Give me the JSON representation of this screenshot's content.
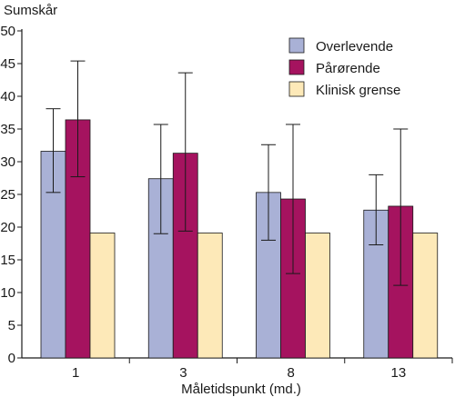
{
  "chart_data": {
    "type": "bar",
    "title": "",
    "ylabel": "Sumskår",
    "xlabel": "Måletidspunkt (md.)",
    "ylim": [
      0,
      50
    ],
    "yticks": [
      0,
      5,
      10,
      15,
      20,
      25,
      30,
      35,
      40,
      45,
      50
    ],
    "categories": [
      "1",
      "3",
      "8",
      "13"
    ],
    "series": [
      {
        "name": "Overlevende",
        "color": "#a9b1d6",
        "values": [
          31.6,
          27.4,
          25.3,
          22.6
        ],
        "error_low": [
          25.3,
          19.0,
          18.0,
          17.3
        ],
        "error_high": [
          38.1,
          35.7,
          32.6,
          28.0
        ]
      },
      {
        "name": "Pårørende",
        "color": "#a5135f",
        "values": [
          36.4,
          31.3,
          24.3,
          23.2
        ],
        "error_low": [
          27.7,
          19.4,
          12.9,
          11.1
        ],
        "error_high": [
          45.4,
          43.6,
          35.7,
          35.0
        ]
      },
      {
        "name": "Klinisk grense",
        "color": "#fde9b8",
        "values": [
          19.1,
          19.1,
          19.1,
          19.1
        ]
      }
    ],
    "grid": false,
    "legend_position": "top-right"
  }
}
